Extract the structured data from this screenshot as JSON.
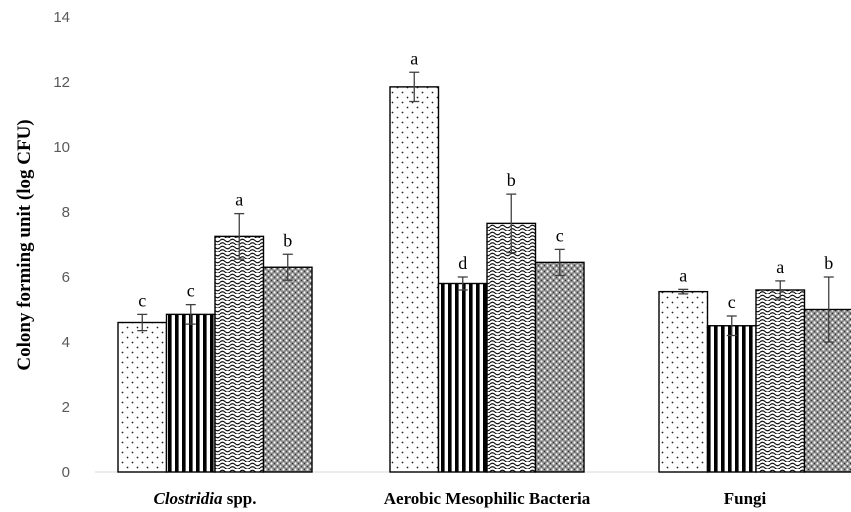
{
  "chart_data": {
    "type": "bar",
    "ylabel": "Colony forming unit (log CFU)",
    "xlabel": "",
    "ylim": [
      0,
      14
    ],
    "yticks": [
      0,
      2,
      4,
      6,
      8,
      10,
      12,
      14
    ],
    "grid": false,
    "legend": "none",
    "categories": [
      {
        "label_italic": "Clostridia",
        "label_rest": " spp."
      },
      {
        "label_italic": "",
        "label_rest": "Aerobic Mesophilic Bacteria"
      },
      {
        "label_italic": "",
        "label_rest": "Fungi"
      }
    ],
    "series": [
      {
        "pattern": "dots",
        "values": [
          4.6,
          11.85,
          5.55
        ],
        "errors": [
          0.25,
          0.45,
          0.07
        ],
        "letters": [
          "c",
          "a",
          "a"
        ]
      },
      {
        "pattern": "stripes",
        "values": [
          4.85,
          5.8,
          4.5
        ],
        "errors": [
          0.3,
          0.2,
          0.3
        ],
        "letters": [
          "c",
          "d",
          "c"
        ]
      },
      {
        "pattern": "waves",
        "values": [
          7.25,
          7.65,
          5.6
        ],
        "errors": [
          0.7,
          0.9,
          0.28
        ],
        "letters": [
          "a",
          "b",
          "a"
        ]
      },
      {
        "pattern": "mesh",
        "values": [
          6.3,
          6.45,
          5.0
        ],
        "errors": [
          0.4,
          0.4,
          1.0
        ],
        "letters": [
          "b",
          "c",
          "b"
        ]
      }
    ]
  }
}
